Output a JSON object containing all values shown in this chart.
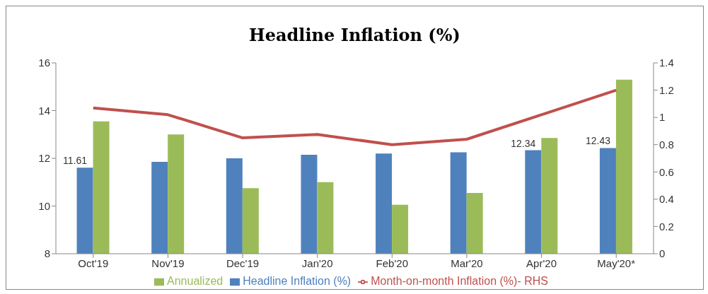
{
  "chart_data": {
    "type": "bar",
    "title": "Headline Inflation (%)",
    "categories": [
      "Oct'19",
      "Nov'19",
      "Dec'19",
      "Jan'20",
      "Feb'20",
      "Mar'20",
      "Apr'20",
      "May'20*"
    ],
    "series": [
      {
        "name": "Headline Inflation (%)",
        "color": "#4f81bd",
        "values": [
          11.61,
          11.85,
          12.0,
          12.15,
          12.2,
          12.25,
          12.34,
          12.43
        ],
        "value_labels": [
          "11.61",
          null,
          null,
          null,
          null,
          null,
          "12.34",
          "12.43"
        ]
      },
      {
        "name": "Annualized",
        "color": "#9bbb59",
        "values": [
          13.55,
          13.0,
          10.75,
          11.0,
          10.05,
          10.55,
          12.85,
          15.3
        ]
      },
      {
        "name": "Month-on-month Inflation (%)- RHS",
        "type": "line",
        "axis": "y2",
        "color": "#c0504d",
        "values": [
          1.07,
          1.02,
          0.85,
          0.875,
          0.8,
          0.84,
          1.02,
          1.2
        ]
      }
    ],
    "ylim": [
      8,
      16
    ],
    "yticks": [
      8,
      10,
      12,
      14,
      16
    ],
    "y2lim": [
      0,
      1.4
    ],
    "y2ticks": [
      0,
      0.2,
      0.4,
      0.6,
      0.8,
      1,
      1.2,
      1.4
    ],
    "legend": "bottom",
    "grid": false,
    "marker": "none"
  }
}
